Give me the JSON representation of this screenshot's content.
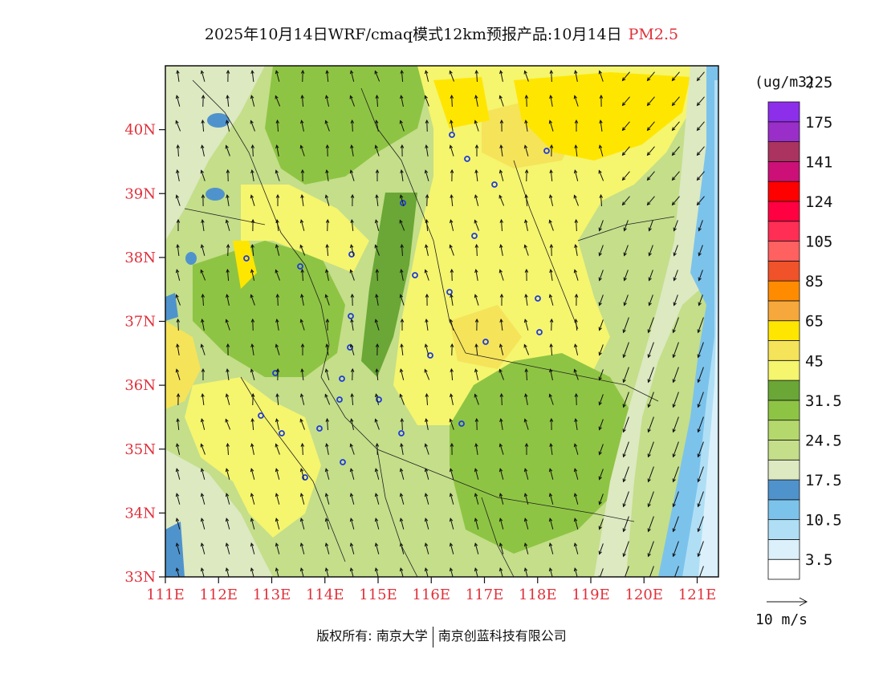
{
  "title": {
    "main": "2025年10月14日WRF/cmaq模式12km预报产品:10月14日",
    "species": "PM2.5"
  },
  "map": {
    "lat_labels": [
      "40N",
      "39N",
      "38N",
      "37N",
      "36N",
      "35N",
      "34N",
      "33N"
    ],
    "lon_labels": [
      "111E",
      "112E",
      "113E",
      "114E",
      "115E",
      "116E",
      "117E",
      "118E",
      "119E",
      "120E",
      "121E"
    ],
    "lat_range": [
      33,
      41
    ],
    "lon_range": [
      111,
      121.4
    ]
  },
  "colorbar": {
    "unit": "(ug/m3)",
    "colors": [
      "#ffffff",
      "#dbf0fa",
      "#b0dff5",
      "#7cc3ec",
      "#4f93cc",
      "#dde9c1",
      "#c4de8a",
      "#b5d86d",
      "#8ec443",
      "#6aa736",
      "#f5f56e",
      "#f5e35a",
      "#ffe600",
      "#f7a83c",
      "#ff8c00",
      "#f0522a",
      "#ff6060",
      "#ff2e55",
      "#ff0040",
      "#ff0000",
      "#cc1077",
      "#aa3360",
      "#9a2ec9",
      "#8d2eeb"
    ],
    "labels": [
      "3.5",
      "10.5",
      "17.5",
      "24.5",
      "31.5",
      "45",
      "65",
      "85",
      "105",
      "124",
      "141",
      "175",
      "225"
    ]
  },
  "wind_legend": {
    "label": "10 m/s"
  },
  "copyright": {
    "left": "版权所有: 南京大学",
    "right": "南京创蓝科技有限公司"
  }
}
